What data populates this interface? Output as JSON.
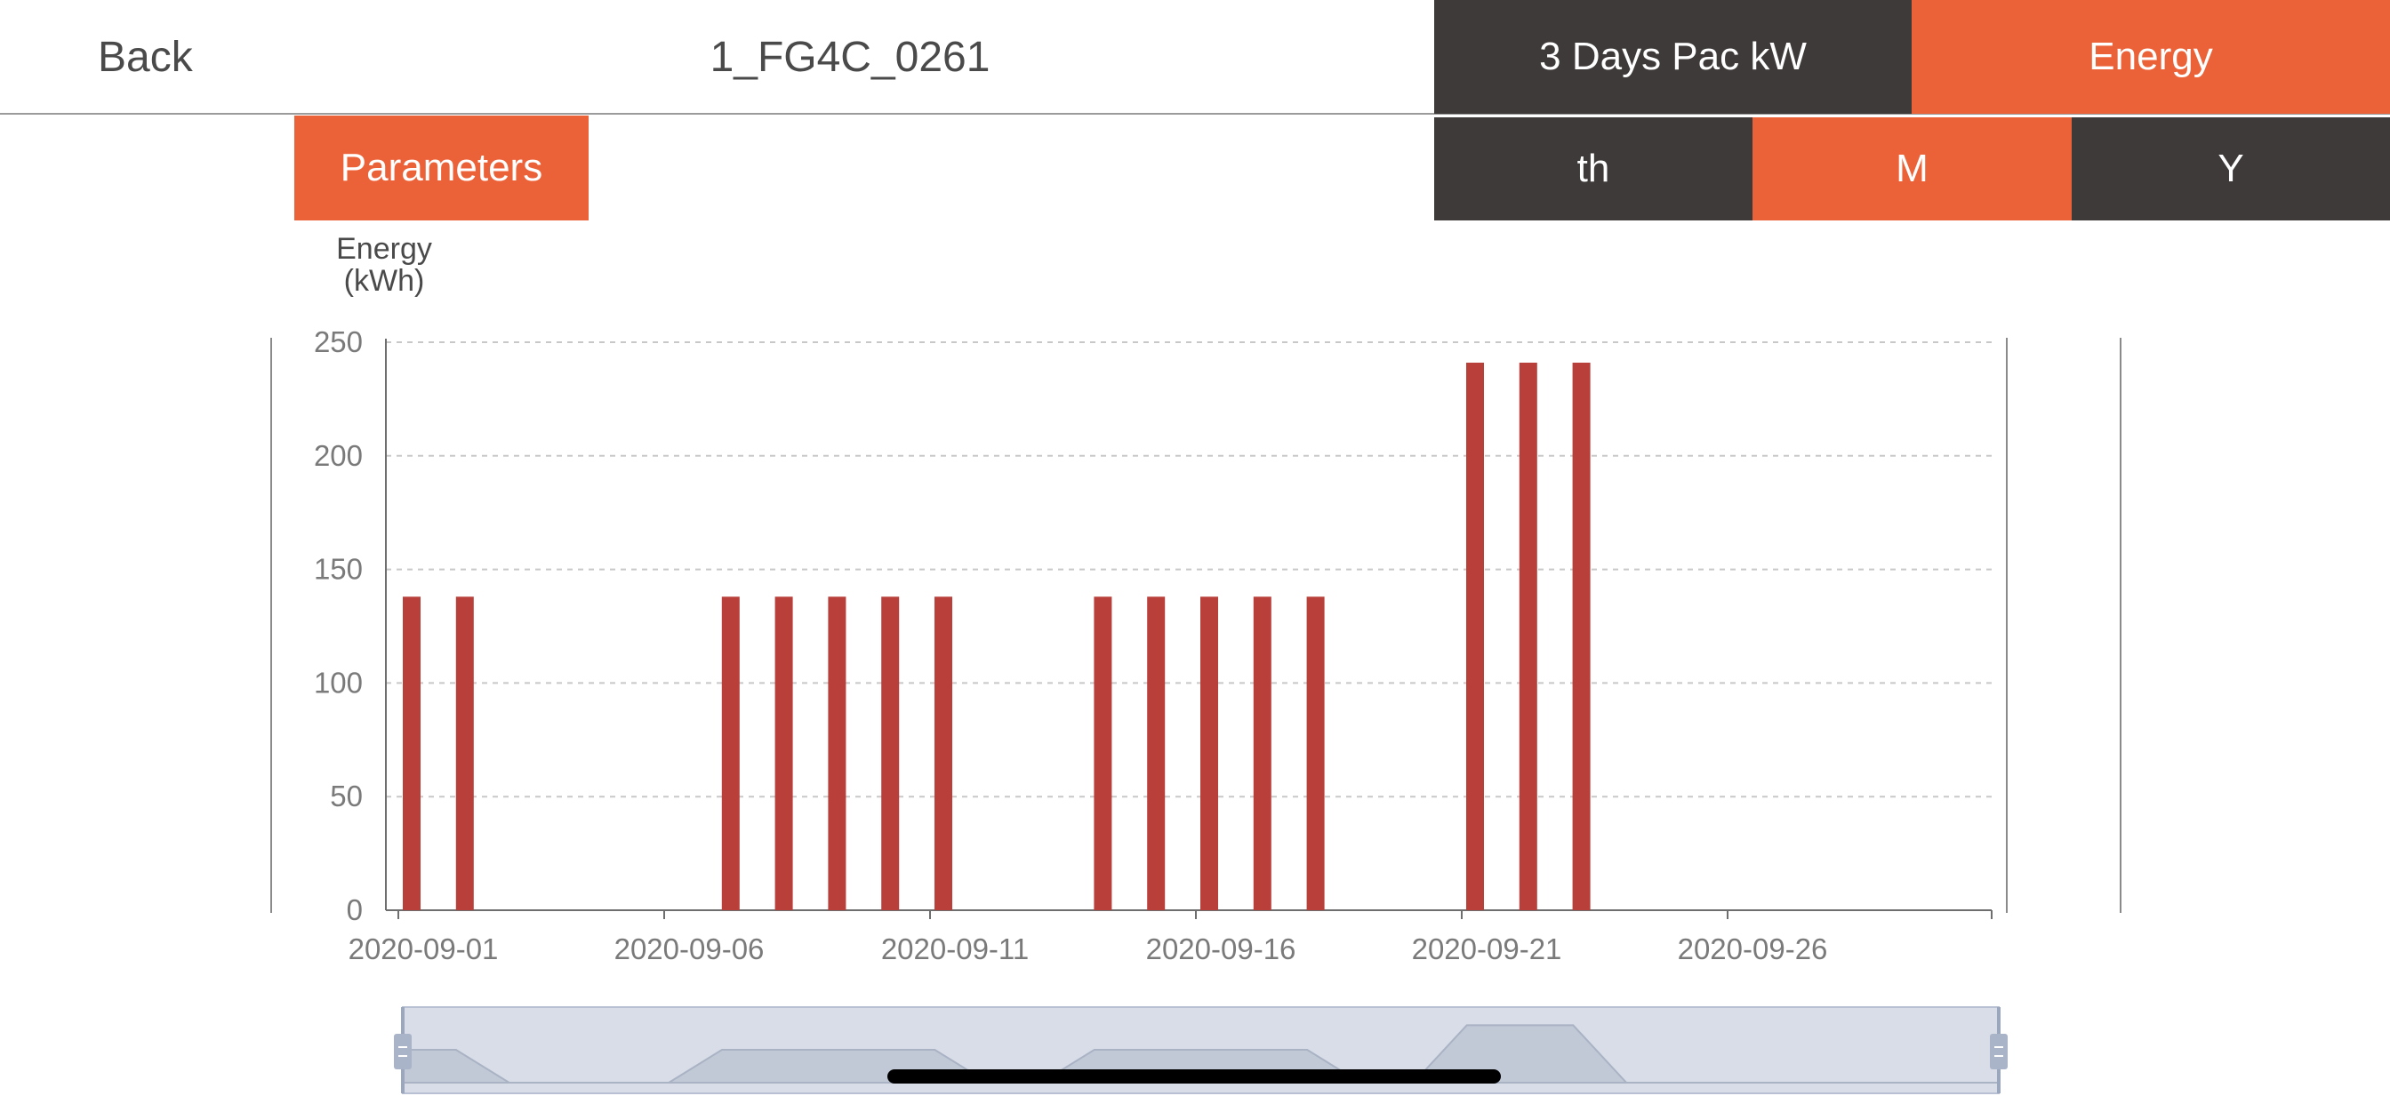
{
  "header": {
    "back_label": "Back",
    "title": "1_FG4C_0261",
    "tabs": [
      {
        "label": "3 Days Pac kW",
        "active": false
      },
      {
        "label": "Energy",
        "active": true
      }
    ]
  },
  "subtabs": [
    {
      "label": "th",
      "active": false
    },
    {
      "label": "M",
      "active": true
    },
    {
      "label": "Y",
      "active": false
    }
  ],
  "parameters_label": "Parameters",
  "colors": {
    "accent": "#ec6238",
    "dark_tab": "#3e3a39",
    "bar": "#b9403a",
    "slider_bg": "#d8dde8"
  },
  "chart_data": {
    "type": "bar",
    "ylabel_line1": "Energy",
    "ylabel_line2": "(kWh)",
    "ylim": [
      0,
      250
    ],
    "yticks": [
      0,
      50,
      100,
      150,
      200,
      250
    ],
    "x_start": "2020-09-01",
    "x_tick_labels": [
      "2020-09-01",
      "2020-09-06",
      "2020-09-11",
      "2020-09-16",
      "2020-09-21",
      "2020-09-26"
    ],
    "grid": true,
    "categories": [
      "2020-09-01",
      "2020-09-02",
      "2020-09-07",
      "2020-09-08",
      "2020-09-09",
      "2020-09-10",
      "2020-09-11",
      "2020-09-14",
      "2020-09-15",
      "2020-09-16",
      "2020-09-17",
      "2020-09-18",
      "2020-09-21",
      "2020-09-22",
      "2020-09-23"
    ],
    "values": [
      138,
      138,
      138,
      138,
      138,
      138,
      138,
      138,
      138,
      138,
      138,
      138,
      241,
      241,
      241
    ]
  },
  "data_zoom": {
    "start_percent": 0,
    "end_percent": 100
  }
}
